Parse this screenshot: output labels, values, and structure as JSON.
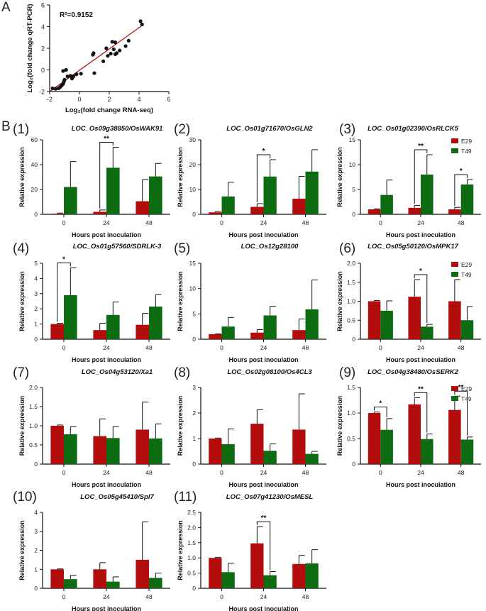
{
  "labels": {
    "A": "A",
    "B": "B",
    "xlabel": "Hours post inoculation",
    "ylabel": "Relative expression"
  },
  "legend": {
    "series": [
      {
        "name": "E29",
        "color": "#b30c0c"
      },
      {
        "name": "T49",
        "color": "#0d6b12"
      }
    ]
  },
  "chart_data": [
    {
      "type": "scatter",
      "id": "A",
      "annotation": "R²=0.9152",
      "xlabel": "Log₂(fold change RNA-seq)",
      "ylabel": "Log₂(fold change qRT-PCR)",
      "xlim": [
        -2,
        6
      ],
      "ylim": [
        -2,
        6
      ],
      "xticks": [
        -2,
        0,
        2,
        4,
        6
      ],
      "yticks": [
        -2,
        0,
        2,
        4,
        6
      ],
      "fit_line": {
        "x": [
          -2,
          4.2
        ],
        "y": [
          -2.0,
          4.1
        ],
        "color": "#b31515"
      },
      "points": [
        [
          -1.8,
          -1.7
        ],
        [
          -1.6,
          -1.75
        ],
        [
          -1.4,
          -1.7
        ],
        [
          -1.3,
          -1.6
        ],
        [
          -1.2,
          -1.45
        ],
        [
          -1.1,
          -1.3
        ],
        [
          -1.05,
          -1.1
        ],
        [
          -1.0,
          -0.9
        ],
        [
          -1.1,
          -0.1
        ],
        [
          -0.9,
          0.0
        ],
        [
          -0.8,
          -0.6
        ],
        [
          -0.6,
          -0.55
        ],
        [
          -0.5,
          -0.8
        ],
        [
          -0.4,
          -0.6
        ],
        [
          -0.2,
          -0.4
        ],
        [
          0.1,
          -0.35
        ],
        [
          0.9,
          1.4
        ],
        [
          0.95,
          1.55
        ],
        [
          1.0,
          -0.3
        ],
        [
          1.6,
          0.8
        ],
        [
          1.8,
          2.0
        ],
        [
          1.9,
          1.3
        ],
        [
          2.1,
          1.5
        ],
        [
          2.2,
          2.6
        ],
        [
          2.3,
          1.9
        ],
        [
          2.4,
          2.55
        ],
        [
          2.5,
          1.55
        ],
        [
          2.4,
          1.45
        ],
        [
          2.7,
          1.8
        ],
        [
          3.1,
          2.2
        ],
        [
          3.3,
          2.7
        ],
        [
          4.1,
          4.5
        ],
        [
          4.2,
          4.2
        ]
      ]
    },
    {
      "type": "bar",
      "id": "1",
      "label": "(1)",
      "title": "LOC_Os09g38850/OsWAK91",
      "categories": [
        "0",
        "24",
        "48"
      ],
      "ylim": [
        0,
        60
      ],
      "yticks": [
        0,
        20,
        40,
        60
      ],
      "series": [
        {
          "name": "E29",
          "values": [
            0.5,
            2,
            10.5
          ],
          "errors": [
            0.5,
            1.5,
            17.5
          ]
        },
        {
          "name": "T49",
          "values": [
            22,
            37.5,
            30.5
          ],
          "errors": [
            20.5,
            16.5,
            10.5
          ]
        }
      ],
      "significance": [
        {
          "category": "24",
          "text": "**"
        }
      ]
    },
    {
      "type": "bar",
      "id": "2",
      "label": "(2)",
      "title": "LOC_Os01g71670/OsGLN2",
      "categories": [
        "0",
        "24",
        "48"
      ],
      "ylim": [
        0,
        30
      ],
      "yticks": [
        0,
        10,
        20,
        30
      ],
      "series": [
        {
          "name": "E29",
          "values": [
            0.8,
            3,
            6.3
          ],
          "errors": [
            0.3,
            1.3,
            9
          ]
        },
        {
          "name": "T49",
          "values": [
            7.2,
            15.2,
            17.2
          ],
          "errors": [
            5.7,
            6.8,
            8.8
          ]
        }
      ],
      "significance": [
        {
          "category": "24",
          "text": "*"
        }
      ]
    },
    {
      "type": "bar",
      "id": "3",
      "label": "(3)",
      "title": "LOC_Os01g02390/OsRLCK5",
      "categories": [
        "0",
        "24",
        "48"
      ],
      "ylim": [
        0,
        15
      ],
      "yticks": [
        0,
        5,
        10,
        15
      ],
      "legend": true,
      "series": [
        {
          "name": "E29",
          "values": [
            1,
            1.3,
            1
          ],
          "errors": [
            0.1,
            0.5,
            0.4
          ]
        },
        {
          "name": "T49",
          "values": [
            3.9,
            8,
            6
          ],
          "errors": [
            3,
            4,
            1
          ]
        }
      ],
      "significance": [
        {
          "category": "24",
          "text": "**"
        },
        {
          "category": "48",
          "text": "*"
        }
      ]
    },
    {
      "type": "bar",
      "id": "4",
      "label": "(4)",
      "title": "LOC_Os01g57560/SDRLK-3",
      "categories": [
        "0",
        "24",
        "48"
      ],
      "ylim": [
        0,
        5
      ],
      "yticks": [
        0,
        1,
        2,
        3,
        4,
        5
      ],
      "series": [
        {
          "name": "E29",
          "values": [
            1,
            0.6,
            0.95
          ],
          "errors": [
            0.05,
            0.45,
            0.75
          ]
        },
        {
          "name": "T49",
          "values": [
            2.9,
            1.6,
            2.15
          ],
          "errors": [
            1.8,
            0.85,
            0.8
          ]
        }
      ],
      "significance": [
        {
          "category": "0",
          "text": "*"
        }
      ]
    },
    {
      "type": "bar",
      "id": "5",
      "label": "(5)",
      "title": "LOC_Os12g28100",
      "categories": [
        "0",
        "24",
        "48"
      ],
      "ylim": [
        0,
        15
      ],
      "yticks": [
        0,
        5,
        10,
        15
      ],
      "series": [
        {
          "name": "E29",
          "values": [
            1,
            1.3,
            1.8
          ],
          "errors": [
            0.05,
            0.6,
            2.2
          ]
        },
        {
          "name": "T49",
          "values": [
            2.5,
            4.7,
            5.9
          ],
          "errors": [
            1.8,
            1.8,
            5.8
          ]
        }
      ],
      "significance": []
    },
    {
      "type": "bar",
      "id": "6",
      "label": "(6)",
      "title": "LOC_Os05g50120/OsMPK17",
      "categories": [
        "0",
        "24",
        "48"
      ],
      "ylim": [
        0,
        2.0
      ],
      "yticks": [
        0,
        0.5,
        1.0,
        1.5,
        2.0
      ],
      "legend": true,
      "series": [
        {
          "name": "E29",
          "values": [
            1,
            1.12,
            1.0
          ],
          "errors": [
            0.02,
            0.45,
            0.57
          ]
        },
        {
          "name": "T49",
          "values": [
            0.75,
            0.33,
            0.5
          ],
          "errors": [
            0.26,
            0.06,
            0.36
          ]
        }
      ],
      "significance": [
        {
          "category": "24",
          "text": "*"
        }
      ]
    },
    {
      "type": "bar",
      "id": "7",
      "label": "(7)",
      "title": "LOC_Os04g53120/Xa1",
      "categories": [
        "0",
        "24",
        "48"
      ],
      "ylim": [
        0,
        2.0
      ],
      "yticks": [
        0,
        0.5,
        1.0,
        1.5,
        2.0
      ],
      "series": [
        {
          "name": "E29",
          "values": [
            1,
            0.73,
            0.9
          ],
          "errors": [
            0.02,
            0.45,
            0.72
          ]
        },
        {
          "name": "T49",
          "values": [
            0.78,
            0.68,
            0.67
          ],
          "errors": [
            0.2,
            0.3,
            0.38
          ]
        }
      ],
      "significance": []
    },
    {
      "type": "bar",
      "id": "8",
      "label": "(8)",
      "title": "LOC_Os02g08100/Os4CL3",
      "categories": [
        "0",
        "24",
        "48"
      ],
      "ylim": [
        0,
        3
      ],
      "yticks": [
        0,
        1,
        2,
        3
      ],
      "series": [
        {
          "name": "E29",
          "values": [
            1,
            1.58,
            1.35
          ],
          "errors": [
            0.02,
            0.55,
            1.4
          ]
        },
        {
          "name": "T49",
          "values": [
            0.78,
            0.52,
            0.4
          ],
          "errors": [
            0.6,
            0.27,
            0.1
          ]
        }
      ],
      "significance": []
    },
    {
      "type": "bar",
      "id": "9",
      "label": "(9)",
      "title": "LOC_Os04g38480/OsSERK2",
      "categories": [
        "0",
        "24",
        "48"
      ],
      "ylim": [
        0,
        1.5
      ],
      "yticks": [
        0,
        0.5,
        1.0,
        1.5
      ],
      "legend": true,
      "series": [
        {
          "name": "E29",
          "values": [
            1,
            1.17,
            1.06
          ],
          "errors": [
            0.02,
            0.13,
            0.27
          ]
        },
        {
          "name": "T49",
          "values": [
            0.67,
            0.49,
            0.48
          ],
          "errors": [
            0.22,
            0.1,
            0.05
          ]
        }
      ],
      "significance": [
        {
          "category": "0",
          "text": "*"
        },
        {
          "category": "24",
          "text": "**"
        },
        {
          "category": "48",
          "text": "**"
        }
      ]
    },
    {
      "type": "bar",
      "id": "10",
      "label": "(10)",
      "title": "LOC_Os05g45410/Spl7",
      "categories": [
        "0",
        "24",
        "48"
      ],
      "ylim": [
        0,
        4
      ],
      "yticks": [
        0,
        1,
        2,
        3,
        4
      ],
      "series": [
        {
          "name": "E29",
          "values": [
            1,
            1,
            1.5
          ],
          "errors": [
            0.02,
            0.35,
            2
          ]
        },
        {
          "name": "T49",
          "values": [
            0.48,
            0.35,
            0.55
          ],
          "errors": [
            0.2,
            0.25,
            0.25
          ]
        }
      ],
      "significance": []
    },
    {
      "type": "bar",
      "id": "11",
      "label": "(11)",
      "title": "LOC_Os07g41230/OsMESL",
      "categories": [
        "0",
        "24",
        "48"
      ],
      "ylim": [
        0,
        2.5
      ],
      "yticks": [
        0,
        0.5,
        1.0,
        1.5,
        2.0,
        2.5
      ],
      "series": [
        {
          "name": "E29",
          "values": [
            1,
            1.48,
            0.8
          ],
          "errors": [
            0.02,
            0.55,
            0.28
          ]
        },
        {
          "name": "T49",
          "values": [
            0.53,
            0.43,
            0.82
          ],
          "errors": [
            0.3,
            0.12,
            0.45
          ]
        }
      ],
      "significance": [
        {
          "category": "24",
          "text": "**"
        }
      ]
    }
  ]
}
